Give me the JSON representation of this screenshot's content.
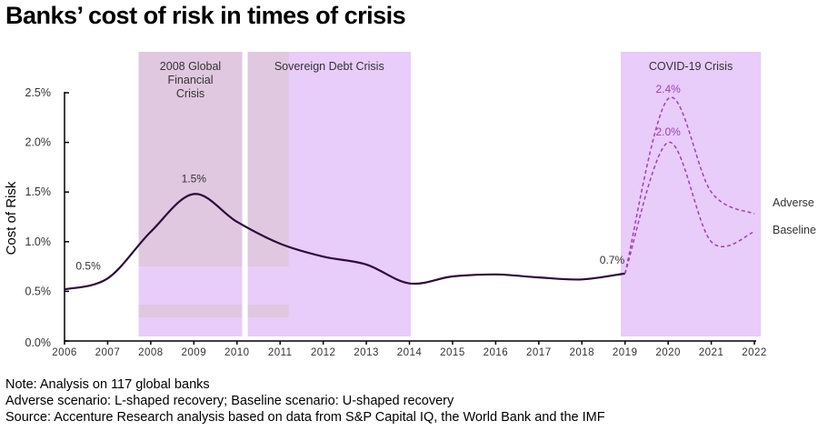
{
  "title": "Banks’ cost of risk in times of crisis",
  "chart_data": {
    "type": "line",
    "title": "Banks’ cost of risk in times of crisis",
    "xlabel": "",
    "ylabel": "Cost of Risk",
    "xlim": [
      2006,
      2022
    ],
    "ylim": [
      0,
      2.5
    ],
    "x_ticks": [
      "2006",
      "2007",
      "2008",
      "2009",
      "2010",
      "2011",
      "2012",
      "2013",
      "2014",
      "2015",
      "2016",
      "2017",
      "2018",
      "2019",
      "2020",
      "2021",
      "2022"
    ],
    "y_ticks": [
      "0.0%",
      "0.5%",
      "1.0%",
      "1.5%",
      "2.0%",
      "2.5%"
    ],
    "grid": false,
    "series": [
      {
        "key": "historical",
        "style": "solid",
        "color": "#2d0a3c",
        "x": [
          2006,
          2007,
          2008,
          2009,
          2010,
          2011,
          2012,
          2013,
          2014,
          2015,
          2016,
          2017,
          2018,
          2019
        ],
        "y": [
          0.52,
          0.63,
          1.1,
          1.48,
          1.2,
          0.98,
          0.85,
          0.77,
          0.58,
          0.65,
          0.67,
          0.64,
          0.62,
          0.68
        ]
      },
      {
        "name": "Adverse",
        "style": "dashed",
        "color": "#a040b8",
        "x": [
          2019,
          2020,
          2021,
          2022
        ],
        "y": [
          0.68,
          2.44,
          1.5,
          1.28
        ]
      },
      {
        "name": "Baseline",
        "style": "dashed",
        "color": "#a040b8",
        "x": [
          2019,
          2020,
          2021,
          2022
        ],
        "y": [
          0.68,
          2.0,
          1.0,
          1.1
        ]
      }
    ],
    "annotations": [
      {
        "text": "0.5%",
        "x": 2006.55,
        "y": 0.72,
        "color": "#333333"
      },
      {
        "text": "1.5%",
        "x": 2009,
        "y": 1.6,
        "color": "#333333"
      },
      {
        "text": "0.7%",
        "x": 2018.7,
        "y": 0.78,
        "color": "#333333"
      },
      {
        "text": "2.4%",
        "x": 2020,
        "y": 2.5,
        "color": "#a040b8"
      },
      {
        "text": "2.0%",
        "x": 2020,
        "y": 2.07,
        "color": "#a040b8"
      }
    ],
    "shaded_periods": [
      {
        "label": "2008 Global Financial Crisis",
        "label_lines": [
          "2008 Global",
          "Financial",
          "Crisis"
        ],
        "from": 2007.72,
        "to": 2010.12
      },
      {
        "label": "Sovereign Debt Crisis",
        "label_lines": [
          "Sovereign Debt Crisis"
        ],
        "from": 2010.25,
        "to": 2014.03
      },
      {
        "label": "COVID-19 Crisis",
        "label_lines": [
          "COVID-19 Crisis"
        ],
        "from": 2018.9,
        "to": 2022.15
      }
    ],
    "colors": {
      "shade": "#e8ccfa",
      "shade_overlap": "#e0c8e0",
      "axis": "#000000"
    }
  },
  "notes": [
    "Note: Analysis on 117 global banks",
    "Adverse scenario: L-shaped recovery; Baseline scenario: U-shaped recovery",
    "Source: Accenture Research analysis based on data from S&P Capital IQ, the World Bank and the IMF"
  ]
}
